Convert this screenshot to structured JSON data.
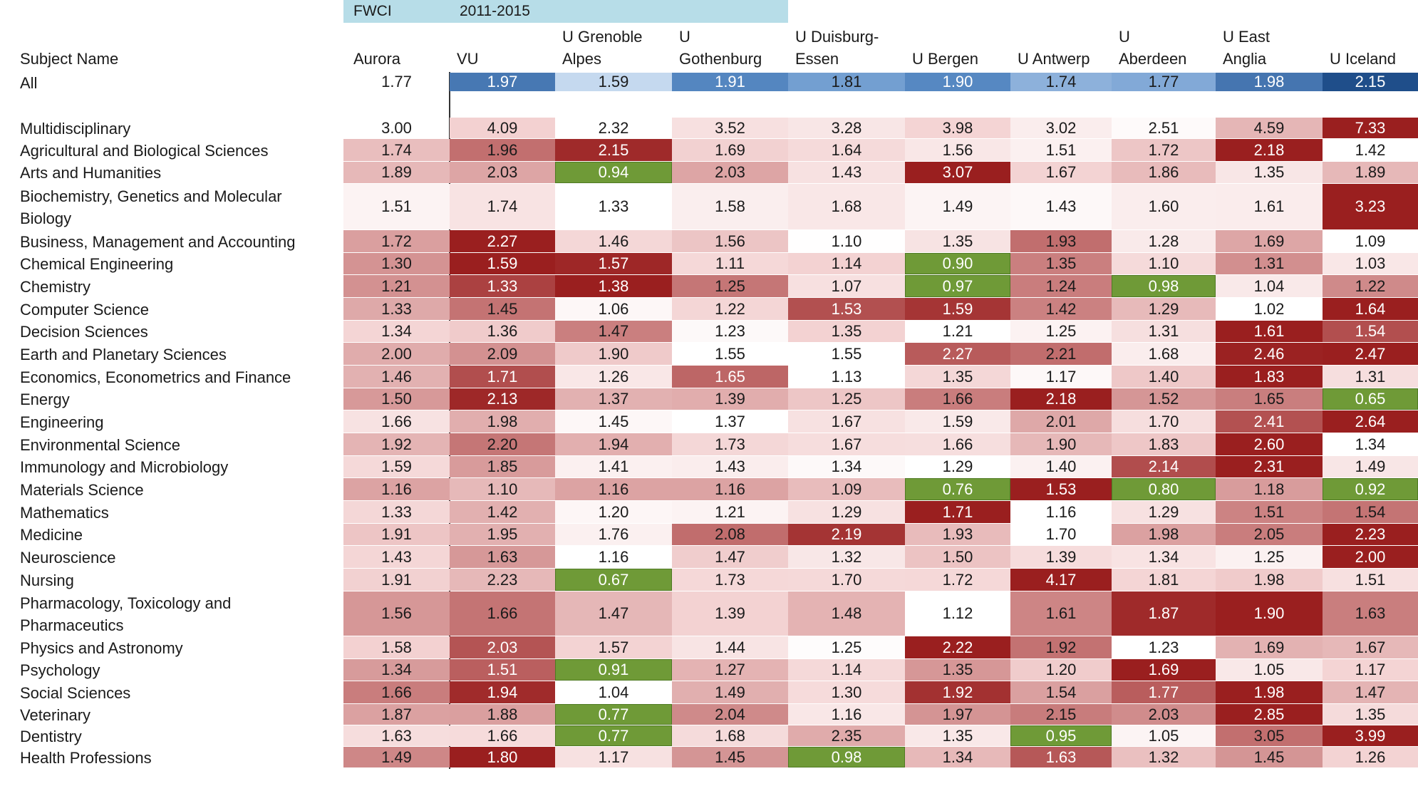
{
  "header": {
    "fwci_label": "FWCI",
    "period_label": "2011-2015",
    "band_color": "#b7dde8"
  },
  "subject_header": "Subject Name",
  "columns": [
    [
      "Aurora"
    ],
    [
      "VU"
    ],
    [
      "U Grenoble",
      "Alpes"
    ],
    [
      "U",
      "Gothenburg"
    ],
    [
      "U Duisburg-",
      "Essen"
    ],
    [
      "U Bergen"
    ],
    [
      "U Antwerp"
    ],
    [
      "U",
      "Aberdeen"
    ],
    [
      "U East",
      "Anglia"
    ],
    [
      "U Iceland"
    ]
  ],
  "colors": {
    "blue_scale": [
      "#c5d9ef",
      "#5d8fc9",
      "#1f4e8a"
    ],
    "red_scale": [
      "#ffffff",
      "#f3d2d2",
      "#9a1f1f"
    ],
    "outlier_green": "#6f9a37"
  },
  "all_row": {
    "label": "All",
    "values": [
      "1.77",
      "1.97",
      "1.59",
      "1.91",
      "1.81",
      "1.90",
      "1.74",
      "1.77",
      "1.98",
      "2.15"
    ]
  },
  "rows": [
    {
      "label": [
        "Multidisciplinary"
      ],
      "values": [
        "3.00",
        "4.09",
        "2.32",
        "3.52",
        "3.28",
        "3.98",
        "3.02",
        "2.51",
        "4.59",
        "7.33"
      ]
    },
    {
      "label": [
        "Agricultural and Biological Sciences"
      ],
      "values": [
        "1.74",
        "1.96",
        "2.15",
        "1.69",
        "1.64",
        "1.56",
        "1.51",
        "1.72",
        "2.18",
        "1.42"
      ]
    },
    {
      "label": [
        "Arts and Humanities"
      ],
      "values": [
        "1.89",
        "2.03",
        "0.94",
        "2.03",
        "1.43",
        "3.07",
        "1.67",
        "1.86",
        "1.35",
        "1.89"
      ]
    },
    {
      "label": [
        "Biochemistry, Genetics and Molecular",
        "Biology"
      ],
      "values": [
        "1.51",
        "1.74",
        "1.33",
        "1.58",
        "1.68",
        "1.49",
        "1.43",
        "1.60",
        "1.61",
        "3.23"
      ]
    },
    {
      "label": [
        "Business, Management and Accounting"
      ],
      "values": [
        "1.72",
        "2.27",
        "1.46",
        "1.56",
        "1.10",
        "1.35",
        "1.93",
        "1.28",
        "1.69",
        "1.09"
      ]
    },
    {
      "label": [
        "Chemical Engineering"
      ],
      "values": [
        "1.30",
        "1.59",
        "1.57",
        "1.11",
        "1.14",
        "0.90",
        "1.35",
        "1.10",
        "1.31",
        "1.03"
      ]
    },
    {
      "label": [
        "Chemistry"
      ],
      "values": [
        "1.21",
        "1.33",
        "1.38",
        "1.25",
        "1.07",
        "0.97",
        "1.24",
        "0.98",
        "1.04",
        "1.22"
      ]
    },
    {
      "label": [
        "Computer Science"
      ],
      "values": [
        "1.33",
        "1.45",
        "1.06",
        "1.22",
        "1.53",
        "1.59",
        "1.42",
        "1.29",
        "1.02",
        "1.64"
      ]
    },
    {
      "label": [
        "Decision Sciences"
      ],
      "values": [
        "1.34",
        "1.36",
        "1.47",
        "1.23",
        "1.35",
        "1.21",
        "1.25",
        "1.31",
        "1.61",
        "1.54"
      ]
    },
    {
      "label": [
        "Earth and Planetary Sciences"
      ],
      "values": [
        "2.00",
        "2.09",
        "1.90",
        "1.55",
        "1.55",
        "2.27",
        "2.21",
        "1.68",
        "2.46",
        "2.47"
      ]
    },
    {
      "label": [
        "Economics, Econometrics and Finance"
      ],
      "values": [
        "1.46",
        "1.71",
        "1.26",
        "1.65",
        "1.13",
        "1.35",
        "1.17",
        "1.40",
        "1.83",
        "1.31"
      ]
    },
    {
      "label": [
        "Energy"
      ],
      "values": [
        "1.50",
        "2.13",
        "1.37",
        "1.39",
        "1.25",
        "1.66",
        "2.18",
        "1.52",
        "1.65",
        "0.65"
      ]
    },
    {
      "label": [
        "Engineering"
      ],
      "values": [
        "1.66",
        "1.98",
        "1.45",
        "1.37",
        "1.67",
        "1.59",
        "2.01",
        "1.70",
        "2.41",
        "2.64"
      ]
    },
    {
      "label": [
        "Environmental Science"
      ],
      "values": [
        "1.92",
        "2.20",
        "1.94",
        "1.73",
        "1.67",
        "1.66",
        "1.90",
        "1.83",
        "2.60",
        "1.34"
      ]
    },
    {
      "label": [
        "Immunology and Microbiology"
      ],
      "values": [
        "1.59",
        "1.85",
        "1.41",
        "1.43",
        "1.34",
        "1.29",
        "1.40",
        "2.14",
        "2.31",
        "1.49"
      ]
    },
    {
      "label": [
        "Materials Science"
      ],
      "values": [
        "1.16",
        "1.10",
        "1.16",
        "1.16",
        "1.09",
        "0.76",
        "1.53",
        "0.80",
        "1.18",
        "0.92"
      ]
    },
    {
      "label": [
        "Mathematics"
      ],
      "values": [
        "1.33",
        "1.42",
        "1.20",
        "1.21",
        "1.29",
        "1.71",
        "1.16",
        "1.29",
        "1.51",
        "1.54"
      ]
    },
    {
      "label": [
        "Medicine"
      ],
      "values": [
        "1.91",
        "1.95",
        "1.76",
        "2.08",
        "2.19",
        "1.93",
        "1.70",
        "1.98",
        "2.05",
        "2.23"
      ]
    },
    {
      "label": [
        "Neuroscience"
      ],
      "values": [
        "1.43",
        "1.63",
        "1.16",
        "1.47",
        "1.32",
        "1.50",
        "1.39",
        "1.34",
        "1.25",
        "2.00"
      ]
    },
    {
      "label": [
        "Nursing"
      ],
      "values": [
        "1.91",
        "2.23",
        "0.67",
        "1.73",
        "1.70",
        "1.72",
        "4.17",
        "1.81",
        "1.98",
        "1.51"
      ]
    },
    {
      "label": [
        "Pharmacology, Toxicology and",
        "Pharmaceutics"
      ],
      "values": [
        "1.56",
        "1.66",
        "1.47",
        "1.39",
        "1.48",
        "1.12",
        "1.61",
        "1.87",
        "1.90",
        "1.63"
      ]
    },
    {
      "label": [
        "Physics and Astronomy"
      ],
      "values": [
        "1.58",
        "2.03",
        "1.57",
        "1.44",
        "1.25",
        "2.22",
        "1.92",
        "1.23",
        "1.69",
        "1.67"
      ]
    },
    {
      "label": [
        "Psychology"
      ],
      "values": [
        "1.34",
        "1.51",
        "0.91",
        "1.27",
        "1.14",
        "1.35",
        "1.20",
        "1.69",
        "1.05",
        "1.17"
      ]
    },
    {
      "label": [
        "Social Sciences"
      ],
      "values": [
        "1.66",
        "1.94",
        "1.04",
        "1.49",
        "1.30",
        "1.92",
        "1.54",
        "1.77",
        "1.98",
        "1.47"
      ]
    },
    {
      "label": [
        "Veterinary"
      ],
      "values": [
        "1.87",
        "1.88",
        "0.77",
        "2.04",
        "1.16",
        "1.97",
        "2.15",
        "2.03",
        "2.85",
        "1.35"
      ]
    },
    {
      "label": [
        "Dentistry"
      ],
      "values": [
        "1.63",
        "1.66",
        "0.77",
        "1.68",
        "2.35",
        "1.35",
        "0.95",
        "1.05",
        "3.05",
        "3.99"
      ]
    },
    {
      "label": [
        "Health Professions"
      ],
      "values": [
        "1.49",
        "1.80",
        "1.17",
        "1.45",
        "0.98",
        "1.34",
        "1.63",
        "1.32",
        "1.45",
        "1.26"
      ]
    }
  ]
}
